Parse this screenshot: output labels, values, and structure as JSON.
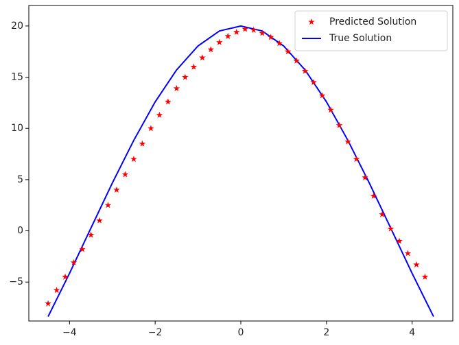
{
  "chart_data": {
    "type": "line_scatter",
    "xlim": [
      -4.95,
      4.95
    ],
    "ylim": [
      -8.8,
      22.0
    ],
    "xticks": [
      {
        "value": -4,
        "label": "−4"
      },
      {
        "value": -2,
        "label": "−2"
      },
      0,
      2,
      4
    ],
    "yticks": [
      {
        "value": -5,
        "label": "−5"
      },
      0,
      5,
      10,
      15,
      20
    ],
    "legend": "upper right",
    "series": [
      {
        "name": "Predicted Solution",
        "kind": "scatter",
        "marker": "star",
        "color": "#ff0000",
        "x": [
          -4.5,
          -4.3,
          -4.1,
          -3.9,
          -3.7,
          -3.5,
          -3.3,
          -3.1,
          -2.9,
          -2.7,
          -2.5,
          -2.3,
          -2.1,
          -1.9,
          -1.7,
          -1.5,
          -1.3,
          -1.1,
          -0.9,
          -0.7,
          -0.5,
          -0.3,
          -0.1,
          0.1,
          0.3,
          0.5,
          0.7,
          0.9,
          1.1,
          1.3,
          1.5,
          1.7,
          1.9,
          2.1,
          2.3,
          2.5,
          2.7,
          2.9,
          3.1,
          3.3,
          3.5,
          3.7,
          3.9,
          4.1,
          4.3
        ],
        "values": [
          -7.1,
          -5.8,
          -4.5,
          -3.1,
          -1.8,
          -0.4,
          1.0,
          2.5,
          4.0,
          5.5,
          7.0,
          8.5,
          10.0,
          11.3,
          12.6,
          13.9,
          15.0,
          16.0,
          16.9,
          17.7,
          18.4,
          19.0,
          19.4,
          19.7,
          19.6,
          19.3,
          18.9,
          18.3,
          17.5,
          16.6,
          15.6,
          14.5,
          13.2,
          11.8,
          10.3,
          8.7,
          7.0,
          5.2,
          3.4,
          1.6,
          0.2,
          -1.0,
          -2.2,
          -3.3,
          -4.5
        ]
      },
      {
        "name": "True Solution",
        "kind": "line",
        "color": "#0000ff",
        "x": [
          -4.5,
          -4.0,
          -3.5,
          -3.0,
          -2.5,
          -2.0,
          -1.5,
          -1.0,
          -0.5,
          0,
          0.5,
          1.0,
          1.5,
          2.0,
          2.5,
          3.0,
          3.5,
          4.0,
          4.5
        ],
        "values": [
          -8.37,
          -4.15,
          0.27,
          4.67,
          8.83,
          12.59,
          15.71,
          18.05,
          19.51,
          20,
          19.51,
          18.05,
          15.71,
          12.59,
          8.83,
          4.67,
          0.27,
          -4.15,
          -8.37
        ]
      }
    ]
  }
}
